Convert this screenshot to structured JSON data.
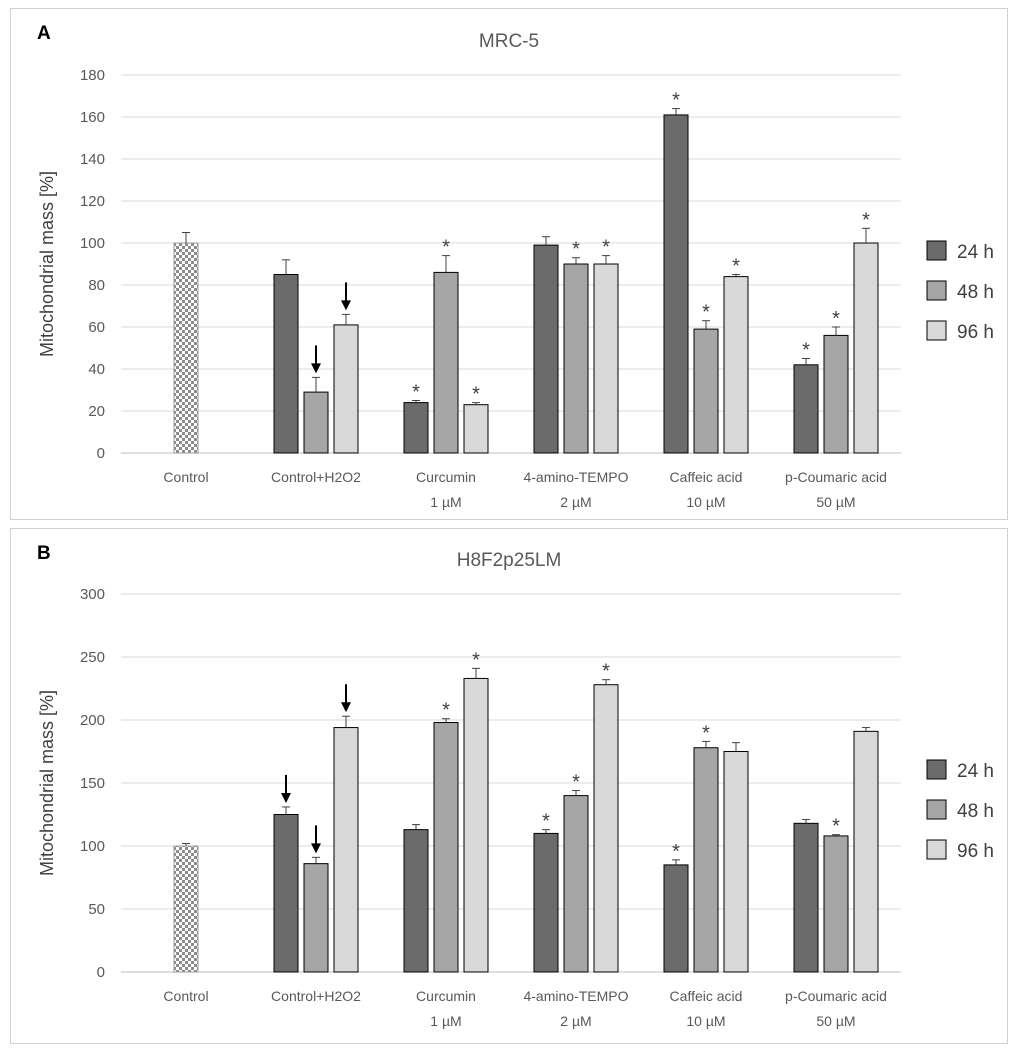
{
  "chart_data": [
    {
      "type": "bar",
      "panel": "A",
      "title": "MRC-5",
      "ylabel": "Mitochondrial mass [%]",
      "xlabel": "",
      "ylim": [
        0,
        180
      ],
      "yticks": [
        "0",
        "20",
        "40",
        "60",
        "80",
        "100",
        "120",
        "140",
        "160",
        "180"
      ],
      "categories": [
        {
          "line1": "Control",
          "line2": ""
        },
        {
          "line1": "Control+H2O2",
          "line2": ""
        },
        {
          "line1": "Curcumin",
          "line2": "1 µM"
        },
        {
          "line1": "4-amino-TEMPO",
          "line2": "2 µM"
        },
        {
          "line1": "Caffeic acid",
          "line2": "10 µM"
        },
        {
          "line1": "p-Coumaric acid",
          "line2": "50 µM"
        }
      ],
      "control": {
        "value": 100,
        "error": 5
      },
      "series": [
        {
          "name": "24 h",
          "color": "#6b6b6b",
          "values": [
            null,
            85,
            24,
            99,
            161,
            42
          ],
          "errors": [
            null,
            7,
            1,
            4,
            3,
            3
          ],
          "stars": [
            false,
            false,
            true,
            false,
            true,
            true
          ],
          "arrows": [
            false,
            false,
            false,
            false,
            false,
            false
          ]
        },
        {
          "name": "48 h",
          "color": "#a6a6a6",
          "values": [
            null,
            29,
            86,
            90,
            59,
            56
          ],
          "errors": [
            null,
            7,
            8,
            3,
            4,
            4
          ],
          "stars": [
            false,
            false,
            true,
            true,
            true,
            true
          ],
          "arrows": [
            false,
            true,
            false,
            false,
            false,
            false
          ]
        },
        {
          "name": "96 h",
          "color": "#d9d9d9",
          "values": [
            null,
            61,
            23,
            90,
            84,
            100
          ],
          "errors": [
            null,
            5,
            1,
            4,
            1,
            7
          ],
          "stars": [
            false,
            false,
            true,
            true,
            true,
            true
          ],
          "arrows": [
            false,
            true,
            false,
            false,
            false,
            false
          ]
        }
      ],
      "star_symbol": "*",
      "legend": [
        "24 h",
        "48 h",
        "96 h"
      ],
      "legend_position": "right"
    },
    {
      "type": "bar",
      "panel": "B",
      "title": "H8F2p25LM",
      "ylabel": "Mitochondrial mass [%]",
      "xlabel": "",
      "ylim": [
        0,
        300
      ],
      "yticks": [
        "0",
        "50",
        "100",
        "150",
        "200",
        "250",
        "300"
      ],
      "categories": [
        {
          "line1": "Control",
          "line2": ""
        },
        {
          "line1": "Control+H2O2",
          "line2": ""
        },
        {
          "line1": "Curcumin",
          "line2": "1 µM"
        },
        {
          "line1": "4-amino-TEMPO",
          "line2": "2 µM"
        },
        {
          "line1": "Caffeic acid",
          "line2": "10 µM"
        },
        {
          "line1": "p-Coumaric acid",
          "line2": "50 µM"
        }
      ],
      "control": {
        "value": 100,
        "error": 2
      },
      "series": [
        {
          "name": "24 h",
          "color": "#6b6b6b",
          "values": [
            null,
            125,
            113,
            110,
            85,
            118
          ],
          "errors": [
            null,
            6,
            4,
            3,
            4,
            3
          ],
          "stars": [
            false,
            false,
            false,
            true,
            true,
            false
          ],
          "arrows": [
            false,
            true,
            false,
            false,
            false,
            false
          ]
        },
        {
          "name": "48 h",
          "color": "#a6a6a6",
          "values": [
            null,
            86,
            198,
            140,
            178,
            108
          ],
          "errors": [
            null,
            5,
            3,
            4,
            5,
            1
          ],
          "stars": [
            false,
            false,
            true,
            true,
            true,
            true
          ],
          "arrows": [
            false,
            true,
            false,
            false,
            false,
            false
          ]
        },
        {
          "name": "96 h",
          "color": "#d9d9d9",
          "values": [
            null,
            194,
            233,
            228,
            175,
            191
          ],
          "errors": [
            null,
            9,
            8,
            4,
            7,
            3
          ],
          "stars": [
            false,
            false,
            true,
            true,
            false,
            false
          ],
          "arrows": [
            false,
            true,
            false,
            false,
            false,
            false
          ]
        }
      ],
      "star_symbol": "*",
      "legend": [
        "24 h",
        "48 h",
        "96 h"
      ],
      "legend_position": "right"
    }
  ],
  "panels": [
    {
      "letter": "A"
    },
    {
      "letter": "B"
    }
  ]
}
